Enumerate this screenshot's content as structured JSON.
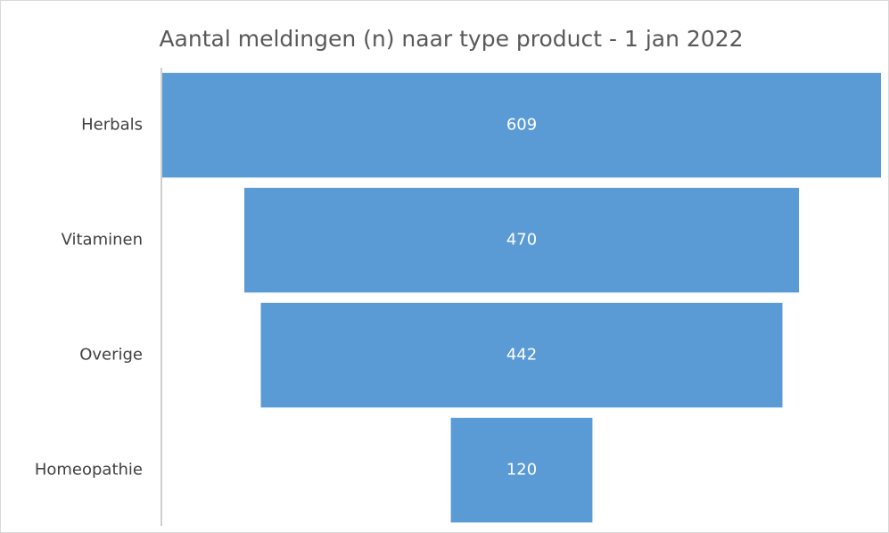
{
  "chart_data": {
    "type": "funnel",
    "title": "Aantal meldingen (n) naar type product - 1 jan 2022",
    "categories": [
      "Herbals",
      "Vitaminen",
      "Overige",
      "Homeopathie"
    ],
    "values": [
      609,
      470,
      442,
      120
    ],
    "color": "#5b9bd5"
  }
}
